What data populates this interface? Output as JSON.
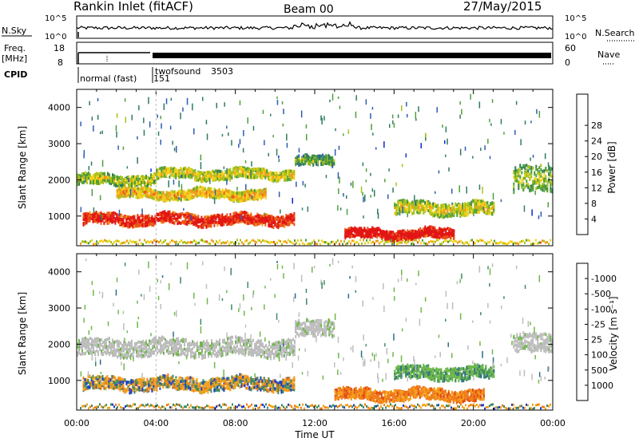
{
  "header": {
    "site": "Rankin Inlet (fitACF)",
    "beam": "Beam 00",
    "date": "27/May/2015"
  },
  "top_panels": {
    "nsky_label": "N.Sky",
    "nsky_ticks": [
      "10^5",
      "10^0"
    ],
    "nsearch_label": "N.Search",
    "nsearch_ticks": [
      "10^5",
      "10^0"
    ],
    "freq_label": "Freq.",
    "freq_unit": "[MHz]",
    "freq_ticks": [
      "18",
      "8"
    ],
    "nave_label": "Nave",
    "nave_ticks": [
      "60",
      "0"
    ],
    "cpid_label": "CPID",
    "cpid_segments": [
      {
        "name": "normal (fast)",
        "id": "151",
        "start_hour": 0
      },
      {
        "name": "twofsound",
        "id": "3503",
        "start_hour": 4
      }
    ]
  },
  "chart_data": [
    {
      "type": "heatmap",
      "quantity": "Power",
      "ylabel": "Slant Range [km]",
      "ylim": [
        180,
        4500
      ],
      "y_ticks": [
        1000,
        2000,
        3000,
        4000
      ],
      "xlim_hours": [
        0,
        24
      ],
      "x_tick_labels": [
        "00:00",
        "04:00",
        "08:00",
        "12:00",
        "16:00",
        "20:00",
        "00:00"
      ],
      "colorbar": {
        "label": "Power [dB]",
        "ticks": [
          4,
          8,
          12,
          16,
          20,
          24,
          28
        ],
        "range": [
          0,
          30
        ],
        "colors": [
          "#1026d8",
          "#2f5bb3",
          "#2e7d5b",
          "#4f9e3a",
          "#a8c21c",
          "#f4d21a",
          "#f39a1b",
          "#ea5a18",
          "#e21414"
        ]
      },
      "bands": [
        {
          "t0": 0.0,
          "t1": 4.0,
          "range_km": 2000,
          "width_km": 280,
          "level": 0.4
        },
        {
          "t0": 4.0,
          "t1": 11.0,
          "range_km": 2150,
          "width_km": 260,
          "level": 0.45
        },
        {
          "t0": 11.0,
          "t1": 13.0,
          "range_km": 2500,
          "width_km": 260,
          "level": 0.3
        },
        {
          "t0": 2.0,
          "t1": 9.5,
          "range_km": 1600,
          "width_km": 250,
          "level": 0.55
        },
        {
          "t0": 0.3,
          "t1": 11.0,
          "range_km": 900,
          "width_km": 300,
          "level": 0.85
        },
        {
          "t0": 13.5,
          "t1": 19.0,
          "range_km": 500,
          "width_km": 260,
          "level": 0.9
        },
        {
          "t0": 16.0,
          "t1": 21.0,
          "range_km": 1200,
          "width_km": 350,
          "level": 0.45
        },
        {
          "t0": 22.0,
          "t1": 24.0,
          "range_km": 2000,
          "width_km": 700,
          "level": 0.35
        }
      ]
    },
    {
      "type": "heatmap",
      "quantity": "Velocity",
      "ylabel": "Slant Range [km]",
      "ylim": [
        180,
        4500
      ],
      "y_ticks": [
        1000,
        2000,
        3000,
        4000
      ],
      "xlim_hours": [
        0,
        24
      ],
      "x_tick_labels": [
        "00:00",
        "04:00",
        "08:00",
        "12:00",
        "16:00",
        "20:00",
        "00:00"
      ],
      "xlabel": "Time UT",
      "colorbar": {
        "label": "Velocity [m s⁻¹]",
        "ticks": [
          "1000",
          "500",
          "100",
          "25",
          "-25",
          "-100",
          "-500",
          "-1000"
        ],
        "colors": [
          "#1a3fd0",
          "#2e6d8a",
          "#3d8a62",
          "#6fb84a",
          "#bdbdbd",
          "#f4a21a",
          "#f07d1a",
          "#e24a15",
          "#d81212"
        ]
      },
      "bands": [
        {
          "t0": 0.0,
          "t1": 11.0,
          "range_km": 1900,
          "width_km": 450,
          "class": "ground"
        },
        {
          "t0": 11.0,
          "t1": 13.0,
          "range_km": 2400,
          "width_km": 450,
          "class": "ground"
        },
        {
          "t0": 22.0,
          "t1": 24.0,
          "range_km": 2000,
          "width_km": 500,
          "class": "ground"
        },
        {
          "t0": 0.3,
          "t1": 11.0,
          "range_km": 900,
          "width_km": 350,
          "class": "mixed"
        },
        {
          "t0": 13.0,
          "t1": 20.5,
          "range_km": 600,
          "width_km": 300,
          "class": "negative"
        },
        {
          "t0": 16.0,
          "t1": 21.0,
          "range_km": 1200,
          "width_km": 350,
          "class": "positive"
        }
      ]
    }
  ]
}
